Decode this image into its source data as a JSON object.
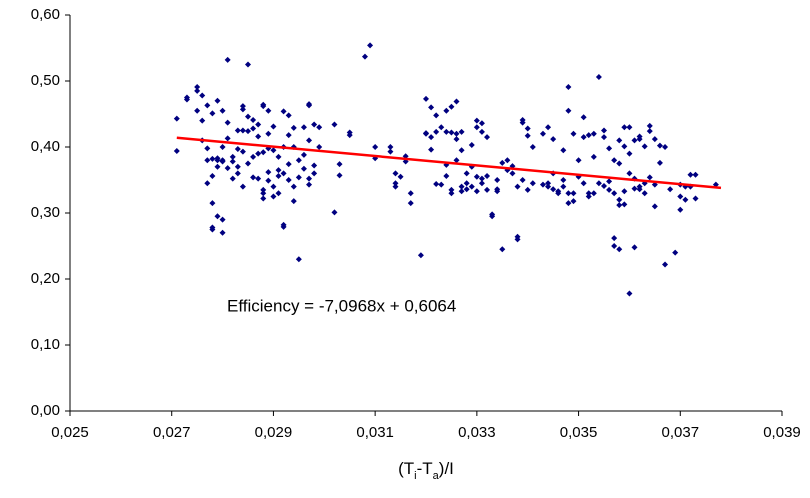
{
  "chart_data": {
    "type": "scatter",
    "x_label": [
      "(T",
      "i",
      "-T",
      "a",
      ")/I"
    ],
    "series": [
      {
        "color": "#000080",
        "x": [
          0.0271,
          0.0271,
          0.0273,
          0.0273,
          0.0275,
          0.0275,
          0.0275,
          0.0276,
          0.0276,
          0.0276,
          0.0277,
          0.0277,
          0.0277,
          0.0277,
          0.0278,
          0.0278,
          0.0278,
          0.0278,
          0.0278,
          0.0278,
          0.0279,
          0.0279,
          0.0279,
          0.0279,
          0.0279,
          0.028,
          0.028,
          0.028,
          0.028,
          0.028,
          0.028,
          0.0281,
          0.0281,
          0.0281,
          0.0281,
          0.0282,
          0.0282,
          0.0282,
          0.0283,
          0.0283,
          0.0283,
          0.0283,
          0.0284,
          0.0284,
          0.0284,
          0.0284,
          0.0284,
          0.0285,
          0.0285,
          0.0285,
          0.0285,
          0.0286,
          0.0286,
          0.0286,
          0.0286,
          0.0287,
          0.0287,
          0.0287,
          0.0287,
          0.0288,
          0.0288,
          0.0288,
          0.0288,
          0.0288,
          0.0288,
          0.0289,
          0.0289,
          0.0289,
          0.0289,
          0.0289,
          0.029,
          0.029,
          0.029,
          0.029,
          0.0291,
          0.0291,
          0.0291,
          0.0291,
          0.0292,
          0.0292,
          0.0292,
          0.0292,
          0.0292,
          0.0293,
          0.0293,
          0.0293,
          0.0293,
          0.0294,
          0.0294,
          0.0294,
          0.0294,
          0.0295,
          0.0295,
          0.0295,
          0.0296,
          0.0296,
          0.0296,
          0.0297,
          0.0297,
          0.0297,
          0.0297,
          0.0297,
          0.0298,
          0.0298,
          0.0298,
          0.0299,
          0.0299,
          0.0302,
          0.0302,
          0.0303,
          0.0303,
          0.0305,
          0.0305,
          0.0308,
          0.0309,
          0.031,
          0.031,
          0.0313,
          0.0313,
          0.0314,
          0.0314,
          0.0314,
          0.0315,
          0.0316,
          0.0316,
          0.0317,
          0.0317,
          0.0319,
          0.032,
          0.032,
          0.032,
          0.0321,
          0.0321,
          0.0321,
          0.0322,
          0.0322,
          0.0322,
          0.0323,
          0.0323,
          0.0324,
          0.0324,
          0.0324,
          0.0324,
          0.0325,
          0.0325,
          0.0325,
          0.0325,
          0.0326,
          0.0326,
          0.0326,
          0.0326,
          0.0327,
          0.0327,
          0.0327,
          0.0327,
          0.0328,
          0.0328,
          0.0328,
          0.0329,
          0.0329,
          0.0329,
          0.033,
          0.033,
          0.033,
          0.033,
          0.0331,
          0.0331,
          0.0331,
          0.0331,
          0.0332,
          0.0332,
          0.0332,
          0.0333,
          0.0333,
          0.0334,
          0.0334,
          0.0334,
          0.0335,
          0.0335,
          0.0336,
          0.0336,
          0.0337,
          0.0337,
          0.0338,
          0.0338,
          0.0338,
          0.0339,
          0.0339,
          0.0339,
          0.034,
          0.034,
          0.034,
          0.0341,
          0.0341,
          0.0343,
          0.0343,
          0.0344,
          0.0344,
          0.0344,
          0.0345,
          0.0345,
          0.0345,
          0.0346,
          0.0346,
          0.0347,
          0.0347,
          0.0347,
          0.0348,
          0.0348,
          0.0348,
          0.0348,
          0.0349,
          0.0349,
          0.0349,
          0.035,
          0.035,
          0.0351,
          0.0351,
          0.0351,
          0.0352,
          0.0352,
          0.0352,
          0.0353,
          0.0353,
          0.0353,
          0.0354,
          0.0354,
          0.0355,
          0.0355,
          0.0355,
          0.0356,
          0.0356,
          0.0356,
          0.0357,
          0.0357,
          0.0357,
          0.0357,
          0.0358,
          0.0358,
          0.0358,
          0.0358,
          0.0358,
          0.0359,
          0.0359,
          0.0359,
          0.0359,
          0.036,
          0.036,
          0.036,
          0.036,
          0.0361,
          0.0361,
          0.0361,
          0.0361,
          0.0362,
          0.0362,
          0.0362,
          0.0362,
          0.0363,
          0.0363,
          0.0363,
          0.0364,
          0.0364,
          0.0364,
          0.0365,
          0.0365,
          0.0365,
          0.0366,
          0.0366,
          0.0367,
          0.0367,
          0.0368,
          0.0369,
          0.037,
          0.037,
          0.037,
          0.0371,
          0.0371,
          0.0372,
          0.0372,
          0.0373,
          0.0373,
          0.0377
        ],
        "values": [
          0.443,
          0.394,
          0.472,
          0.475,
          0.491,
          0.485,
          0.455,
          0.478,
          0.44,
          0.41,
          0.463,
          0.38,
          0.345,
          0.398,
          0.451,
          0.382,
          0.356,
          0.315,
          0.278,
          0.275,
          0.47,
          0.38,
          0.383,
          0.37,
          0.295,
          0.455,
          0.4,
          0.38,
          0.378,
          0.29,
          0.27,
          0.532,
          0.437,
          0.368,
          0.413,
          0.385,
          0.378,
          0.352,
          0.425,
          0.397,
          0.37,
          0.36,
          0.457,
          0.425,
          0.462,
          0.34,
          0.393,
          0.525,
          0.446,
          0.424,
          0.375,
          0.441,
          0.428,
          0.385,
          0.354,
          0.434,
          0.416,
          0.39,
          0.352,
          0.462,
          0.464,
          0.392,
          0.335,
          0.33,
          0.322,
          0.455,
          0.42,
          0.398,
          0.349,
          0.362,
          0.431,
          0.395,
          0.34,
          0.325,
          0.385,
          0.356,
          0.33,
          0.365,
          0.454,
          0.4,
          0.36,
          0.282,
          0.279,
          0.448,
          0.418,
          0.374,
          0.35,
          0.429,
          0.4,
          0.34,
          0.318,
          0.38,
          0.354,
          0.23,
          0.43,
          0.388,
          0.367,
          0.463,
          0.465,
          0.41,
          0.352,
          0.343,
          0.434,
          0.372,
          0.36,
          0.43,
          0.4,
          0.434,
          0.301,
          0.374,
          0.357,
          0.422,
          0.418,
          0.537,
          0.554,
          0.383,
          0.4,
          0.4,
          0.393,
          0.36,
          0.345,
          0.34,
          0.355,
          0.386,
          0.378,
          0.33,
          0.315,
          0.236,
          0.473,
          0.421,
          0.42,
          0.46,
          0.415,
          0.396,
          0.448,
          0.423,
          0.344,
          0.43,
          0.343,
          0.455,
          0.423,
          0.373,
          0.356,
          0.461,
          0.422,
          0.335,
          0.33,
          0.469,
          0.42,
          0.412,
          0.38,
          0.423,
          0.395,
          0.34,
          0.333,
          0.36,
          0.345,
          0.336,
          0.403,
          0.37,
          0.34,
          0.44,
          0.43,
          0.355,
          0.333,
          0.436,
          0.423,
          0.352,
          0.345,
          0.415,
          0.356,
          0.335,
          0.295,
          0.298,
          0.35,
          0.336,
          0.333,
          0.376,
          0.245,
          0.38,
          0.365,
          0.371,
          0.36,
          0.34,
          0.264,
          0.26,
          0.441,
          0.437,
          0.35,
          0.428,
          0.417,
          0.335,
          0.4,
          0.345,
          0.42,
          0.343,
          0.43,
          0.345,
          0.34,
          0.412,
          0.36,
          0.336,
          0.333,
          0.33,
          0.395,
          0.35,
          0.34,
          0.491,
          0.455,
          0.33,
          0.315,
          0.42,
          0.33,
          0.318,
          0.38,
          0.355,
          0.445,
          0.415,
          0.345,
          0.418,
          0.33,
          0.325,
          0.42,
          0.385,
          0.33,
          0.506,
          0.345,
          0.425,
          0.415,
          0.341,
          0.398,
          0.348,
          0.335,
          0.38,
          0.33,
          0.262,
          0.25,
          0.41,
          0.375,
          0.32,
          0.245,
          0.312,
          0.43,
          0.401,
          0.313,
          0.333,
          0.43,
          0.39,
          0.36,
          0.178,
          0.41,
          0.352,
          0.337,
          0.248,
          0.416,
          0.412,
          0.34,
          0.336,
          0.401,
          0.345,
          0.33,
          0.432,
          0.424,
          0.354,
          0.412,
          0.343,
          0.31,
          0.376,
          0.402,
          0.4,
          0.222,
          0.336,
          0.24,
          0.343,
          0.305,
          0.325,
          0.34,
          0.32,
          0.358,
          0.34,
          0.358,
          0.322,
          0.343
        ]
      }
    ],
    "trendline": {
      "label": "Efficiency = -7,0968x + 0,6064",
      "color": "#ff0000",
      "x": [
        0.0271,
        0.0378
      ],
      "values": [
        0.414,
        0.338
      ]
    },
    "xlim": [
      0.025,
      0.039
    ],
    "xticks": [
      {
        "value": 0.025,
        "label": "0,025"
      },
      {
        "value": 0.027,
        "label": "0,027"
      },
      {
        "value": 0.029,
        "label": "0,029"
      },
      {
        "value": 0.031,
        "label": "0,031"
      },
      {
        "value": 0.033,
        "label": "0,033"
      },
      {
        "value": 0.035,
        "label": "0,035"
      },
      {
        "value": 0.037,
        "label": "0,037"
      },
      {
        "value": 0.039,
        "label": "0,039"
      }
    ],
    "ylim": [
      0,
      0.6
    ],
    "yticks": [
      {
        "value": 0,
        "label": "0,00"
      },
      {
        "value": 0.1,
        "label": "0,10"
      },
      {
        "value": 0.2,
        "label": "0,20"
      },
      {
        "value": 0.3,
        "label": "0,30"
      },
      {
        "value": 0.4,
        "label": "0,40"
      },
      {
        "value": 0.5,
        "label": "0,50"
      },
      {
        "value": 0.6,
        "label": "0,60"
      }
    ],
    "grid": false
  }
}
